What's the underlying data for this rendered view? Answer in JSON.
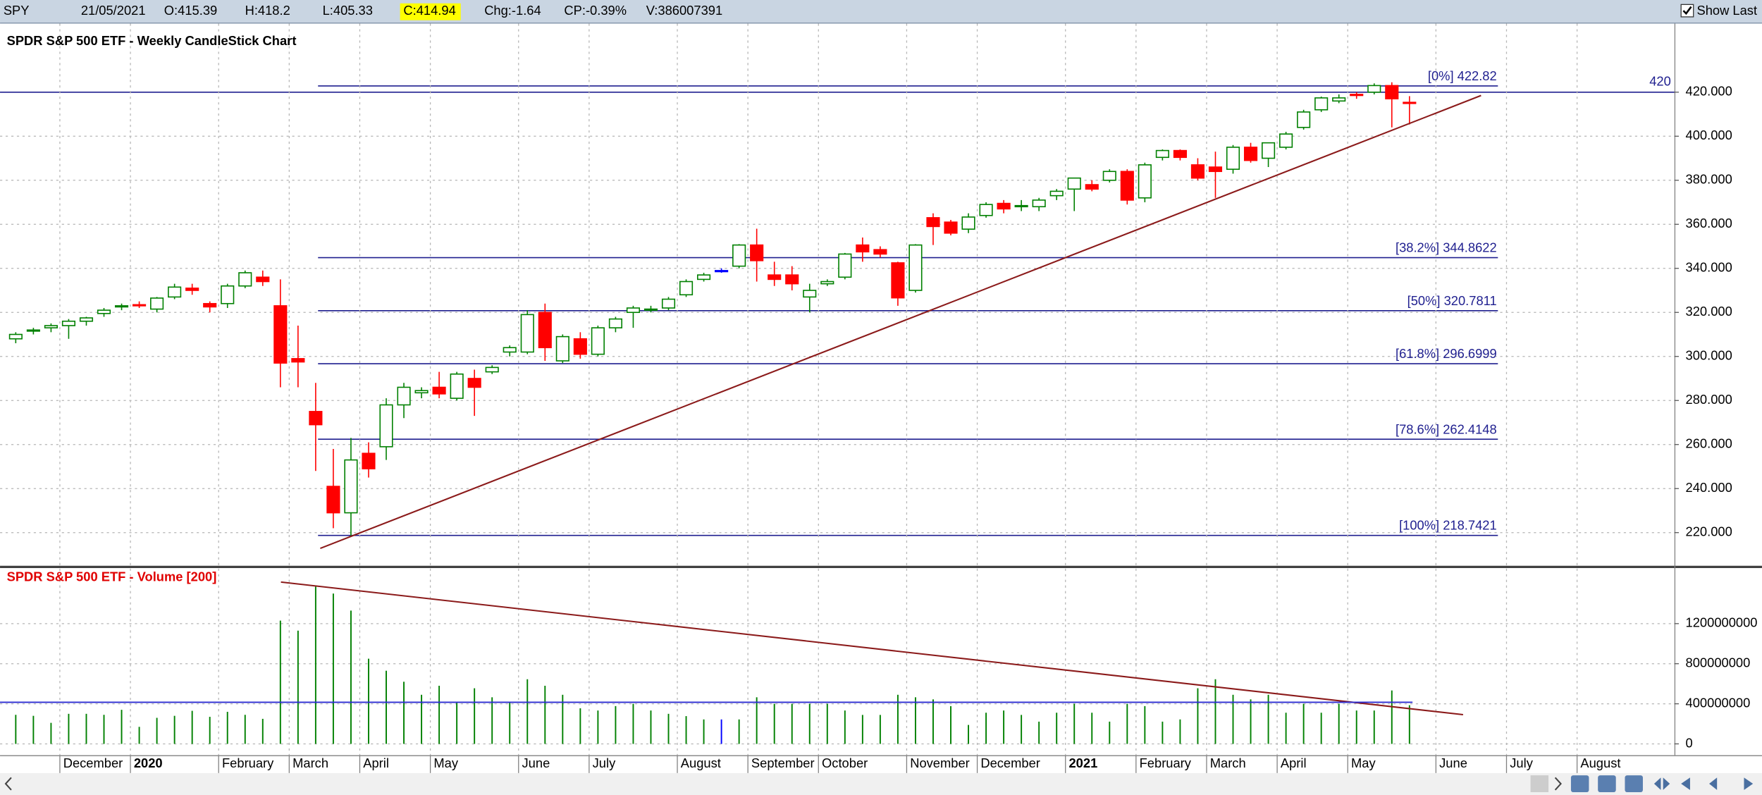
{
  "header": {
    "symbol": "SPY",
    "date": "21/05/2021",
    "open": "O:415.39",
    "high": "H:418.2",
    "low": "L:405.33",
    "close": "C:414.94",
    "change": "Chg:-1.64",
    "change_pct": "CP:-0.39%",
    "volume": "V:386007391",
    "show_last": "Show Last"
  },
  "chart_data": [
    {
      "type": "candlestick",
      "title": "SPDR S&P 500 ETF - Weekly CandleStick Chart",
      "up_color": "#008000",
      "down_color": "#ff0000",
      "flat_color": "#0000ff",
      "open": [
        308,
        311.5,
        313,
        314,
        316,
        319.5,
        322.5,
        323.5,
        321.5,
        327,
        331,
        324,
        324,
        332,
        336,
        323,
        299,
        275,
        241,
        229,
        256,
        259,
        278,
        283.5,
        286,
        281,
        290,
        293,
        302,
        302,
        320,
        298,
        308,
        301,
        313,
        320,
        321,
        322,
        328,
        335,
        339,
        341,
        350.6,
        337,
        337,
        327,
        333,
        336,
        350.6,
        348.5,
        342.5,
        330,
        363,
        361,
        357.8,
        364,
        369.5,
        368,
        368,
        373,
        376,
        378,
        380,
        384,
        372,
        390.4,
        393.5,
        387,
        386,
        385,
        395,
        390,
        395,
        404,
        412,
        416,
        419,
        420,
        423,
        415.39
      ],
      "high": [
        311,
        313,
        315,
        317,
        318,
        322,
        324,
        325,
        327,
        333,
        333,
        325,
        333,
        339,
        339,
        335,
        314,
        288,
        258,
        263,
        261,
        281,
        288,
        286,
        293,
        293,
        294,
        296,
        305,
        321,
        324,
        310,
        311,
        314,
        318,
        323,
        323,
        327,
        335,
        338,
        340,
        351,
        358,
        343,
        341,
        333,
        335,
        347,
        354,
        350,
        343,
        351,
        365,
        362,
        365,
        370,
        371,
        371,
        372,
        376,
        381,
        380,
        385,
        385,
        388,
        394,
        394,
        390,
        393,
        396,
        397,
        397,
        402,
        412,
        418,
        419,
        420,
        424,
        424.5,
        418.2
      ],
      "low": [
        306,
        310,
        311,
        308,
        314,
        318,
        321,
        322,
        320,
        326,
        328,
        320,
        322,
        331,
        332,
        286,
        286,
        248,
        222,
        218,
        245,
        253,
        272,
        281,
        281,
        280,
        273,
        292,
        300,
        301,
        298,
        297,
        299,
        300,
        311,
        313,
        320,
        321,
        327,
        334,
        338,
        340,
        334,
        332,
        330,
        320,
        332,
        335,
        343,
        345,
        323,
        329,
        350.6,
        355,
        356,
        363,
        365,
        366,
        366,
        371,
        366,
        375,
        379,
        369,
        370,
        389,
        389,
        380,
        372,
        383,
        388,
        386,
        394,
        403,
        411,
        415,
        417,
        419,
        404,
        405.33
      ],
      "close": [
        310,
        312,
        314,
        316,
        317.5,
        321,
        323,
        323,
        326.5,
        331.5,
        330,
        322.5,
        332,
        338,
        334,
        297,
        297.5,
        269,
        229,
        253,
        249,
        278,
        286,
        284.5,
        283,
        292,
        286,
        295,
        304,
        319,
        304,
        309,
        301,
        313,
        317,
        322,
        321.5,
        326,
        334,
        337,
        339,
        350.6,
        343.5,
        335,
        333,
        330,
        334,
        346.5,
        347.5,
        346.5,
        326.6,
        350.6,
        359,
        356,
        363.3,
        369,
        367,
        368.5,
        371,
        375,
        381,
        376,
        384,
        371,
        387,
        393.5,
        390.4,
        381,
        384,
        395,
        389,
        397,
        401,
        411,
        417.4,
        417.4,
        418.5,
        423,
        417,
        414.94
      ],
      "ylim": [
        205.2,
        449.1
      ],
      "yticks": [
        {
          "value": 220,
          "label": "220.000"
        },
        {
          "value": 240,
          "label": "240.000"
        },
        {
          "value": 260,
          "label": "260.000"
        },
        {
          "value": 280,
          "label": "280.000"
        },
        {
          "value": 300,
          "label": "300.000"
        },
        {
          "value": 320,
          "label": "320.000"
        },
        {
          "value": 340,
          "label": "340.000"
        },
        {
          "value": 360,
          "label": "360.000"
        },
        {
          "value": 380,
          "label": "380.000"
        },
        {
          "value": 400,
          "label": "400.000"
        },
        {
          "value": 420,
          "label": "420.000"
        }
      ],
      "fib_levels": [
        {
          "value": 422.82,
          "label": "[0%] 422.82"
        },
        {
          "value": 344.8622,
          "label": "[38.2%] 344.8622"
        },
        {
          "value": 320.7811,
          "label": "[50%] 320.7811"
        },
        {
          "value": 296.6999,
          "label": "[61.8%] 296.6999"
        },
        {
          "value": 262.4148,
          "label": "[78.6%] 262.4148"
        },
        {
          "value": 218.7421,
          "label": "[100%] 218.7421"
        }
      ],
      "fib_color": "#1f1f8f",
      "price_marker": 420,
      "price_marker_color": "#1f1f8f",
      "grid": true
    },
    {
      "type": "bar",
      "title": "SPDR S&P 500 ETF - Volume [200]",
      "color": "#008000",
      "categories": [
        null,
        null,
        null,
        "December",
        null,
        null,
        null,
        "2020",
        null,
        null,
        null,
        null,
        "February",
        null,
        null,
        null,
        "March",
        null,
        null,
        null,
        "April",
        null,
        null,
        null,
        "May",
        null,
        null,
        null,
        null,
        "June",
        null,
        null,
        null,
        "July",
        null,
        null,
        null,
        null,
        "August",
        null,
        null,
        null,
        "September",
        null,
        null,
        null,
        "October",
        null,
        null,
        null,
        null,
        "November",
        null,
        null,
        null,
        "December",
        null,
        null,
        null,
        null,
        "2021",
        null,
        null,
        null,
        "February",
        null,
        null,
        null,
        "March",
        null,
        null,
        null,
        "April",
        null,
        null,
        null,
        "May",
        null,
        null,
        null,
        null,
        "June",
        null,
        null,
        null,
        "July",
        null,
        null,
        null,
        "August",
        null
      ],
      "values": [
        290000000,
        280000000,
        210000000,
        300000000,
        300000000,
        290000000,
        340000000,
        170000000,
        260000000,
        280000000,
        330000000,
        270000000,
        320000000,
        290000000,
        250000000,
        1230000000,
        1130000000,
        1570000000,
        1500000000,
        1330000000,
        850000000,
        730000000,
        620000000,
        490000000,
        580000000,
        410000000,
        555000000,
        465000000,
        410000000,
        645000000,
        580000000,
        490000000,
        355000000,
        333000000,
        377000000,
        400000000,
        333000000,
        300000000,
        277000000,
        244000000,
        244000000,
        244000000,
        465000000,
        400000000,
        400000000,
        400000000,
        400000000,
        333000000,
        289000000,
        289000000,
        490000000,
        465000000,
        444000000,
        377000000,
        189000000,
        311000000,
        333000000,
        289000000,
        222000000,
        311000000,
        400000000,
        311000000,
        222000000,
        400000000,
        377000000,
        222000000,
        244000000,
        555000000,
        645000000,
        490000000,
        444000000,
        490000000,
        311000000,
        400000000,
        311000000,
        400000000,
        333000000,
        333000000,
        533000000,
        386007391,
        null,
        null,
        null,
        null,
        null,
        null,
        null,
        null,
        null,
        null,
        null
      ],
      "ylim": [
        -112000000,
        1738000000
      ],
      "yticks": [
        0,
        400000000,
        800000000,
        1200000000
      ],
      "grid": true
    }
  ]
}
